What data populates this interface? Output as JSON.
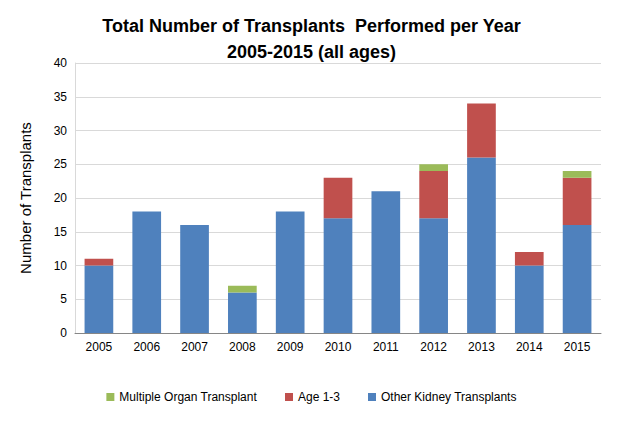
{
  "chart_data": {
    "type": "bar",
    "title": "Total Number of Transplants  Performed per Year\n2005-2015 (all ages)",
    "y_label": "Number of Transplants",
    "categories": [
      "2005",
      "2006",
      "2007",
      "2008",
      "2009",
      "2010",
      "2011",
      "2012",
      "2013",
      "2014",
      "2015"
    ],
    "series": [
      {
        "name": "Other Kidney Transplants",
        "color": "#4f81bd",
        "values": [
          10,
          18,
          16,
          6,
          18,
          17,
          21,
          17,
          26,
          10,
          16
        ]
      },
      {
        "name": "Age 1-3",
        "color": "#c0504d",
        "values": [
          1,
          0,
          0,
          0,
          0,
          6,
          0,
          7,
          8,
          2,
          7
        ]
      },
      {
        "name": "Multiple Organ Transplant",
        "color": "#9bbb59",
        "values": [
          0,
          0,
          0,
          1,
          0,
          0,
          0,
          1,
          0,
          0,
          1
        ]
      }
    ],
    "stacked": true,
    "ylim": [
      0,
      40
    ],
    "yticks": [
      0,
      5,
      10,
      15,
      20,
      25,
      30,
      35,
      40
    ],
    "grid": true,
    "legend": "bottom"
  }
}
